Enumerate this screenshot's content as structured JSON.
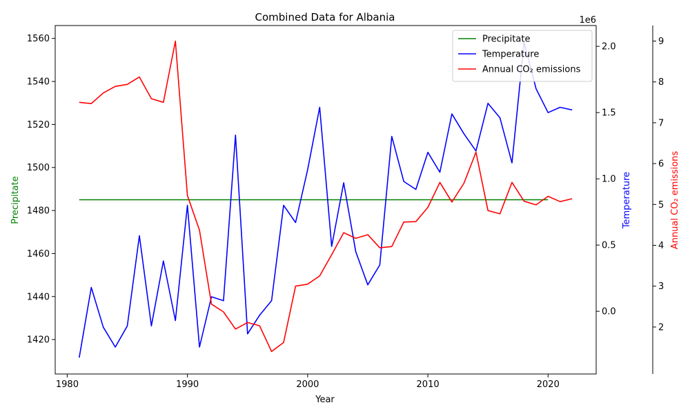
{
  "chart_data": {
    "type": "line",
    "title": "Combined Data for Albania",
    "xlabel": "Year",
    "xlim": [
      1979,
      2024
    ],
    "x_ticks": [
      1980,
      1990,
      2000,
      2010,
      2020
    ],
    "axes": {
      "left": {
        "label": "Precipitate",
        "color": "#008000",
        "ylim": [
          1404,
          1566
        ],
        "ticks": [
          1420,
          1440,
          1460,
          1480,
          1500,
          1520,
          1540,
          1560
        ]
      },
      "right1": {
        "label": "Temperature",
        "color": "#0000ff",
        "ylim": [
          -473000,
          2157000
        ],
        "ticks": [
          0,
          500000,
          1000000,
          1500000,
          2000000
        ],
        "tick_labels": [
          "0.0",
          "0.5",
          "1.0",
          "1.5",
          "2.0"
        ],
        "scale_label": "1e6"
      },
      "right2": {
        "label": "Annual CO₂ emissions",
        "color": "#ff0000",
        "ylim": [
          0.85,
          9.38
        ],
        "ticks": [
          2,
          3,
          4,
          5,
          6,
          7,
          8,
          9
        ]
      }
    },
    "legend_position": "top-right",
    "series": [
      {
        "name": "Precipitate",
        "axis": "left",
        "color": "#008000",
        "x": [
          1981,
          2020
        ],
        "y": [
          1485,
          1485
        ]
      },
      {
        "name": "Temperature",
        "axis": "right1",
        "color": "#0000ff",
        "x": [
          1981,
          1982,
          1983,
          1984,
          1985,
          1986,
          1987,
          1988,
          1989,
          1990,
          1991,
          1992,
          1993,
          1994,
          1995,
          1996,
          1997,
          1998,
          1999,
          2000,
          2001,
          2002,
          2003,
          2004,
          2005,
          2006,
          2007,
          2008,
          2009,
          2010,
          2011,
          2012,
          2013,
          2014,
          2015,
          2016,
          2017,
          2018,
          2019,
          2020,
          2021,
          2022
        ],
        "y": [
          -350000,
          180000,
          -120000,
          -270000,
          -110000,
          570000,
          -110000,
          380000,
          -70000,
          800000,
          -270000,
          110000,
          80000,
          1330000,
          -170000,
          -30000,
          80000,
          800000,
          670000,
          1070000,
          1540000,
          490000,
          970000,
          450000,
          200000,
          350000,
          1320000,
          980000,
          920000,
          1200000,
          1050000,
          1490000,
          1340000,
          1210000,
          1570000,
          1460000,
          1120000,
          2030000,
          1680000,
          1500000,
          1540000,
          1520000
        ]
      },
      {
        "name": "Annual CO₂ emissions",
        "axis": "right2",
        "color": "#ff0000",
        "x": [
          1981,
          1982,
          1983,
          1984,
          1985,
          1986,
          1987,
          1988,
          1989,
          1990,
          1991,
          1992,
          1993,
          1994,
          1995,
          1996,
          1997,
          1998,
          1999,
          2000,
          2001,
          2002,
          2003,
          2004,
          2005,
          2006,
          2007,
          2008,
          2009,
          2010,
          2011,
          2012,
          2013,
          2014,
          2015,
          2016,
          2017,
          2018,
          2019,
          2020,
          2021,
          2022
        ],
        "y": [
          7.5,
          7.47,
          7.73,
          7.89,
          7.94,
          8.12,
          7.59,
          7.5,
          9.0,
          5.22,
          4.37,
          2.56,
          2.37,
          1.95,
          2.11,
          2.03,
          1.4,
          1.62,
          3.0,
          3.05,
          3.25,
          3.77,
          4.31,
          4.17,
          4.26,
          3.94,
          3.97,
          4.57,
          4.58,
          4.93,
          5.54,
          5.06,
          5.52,
          6.28,
          4.85,
          4.77,
          5.54,
          5.08,
          4.99,
          5.2,
          5.07,
          5.14
        ]
      }
    ]
  }
}
